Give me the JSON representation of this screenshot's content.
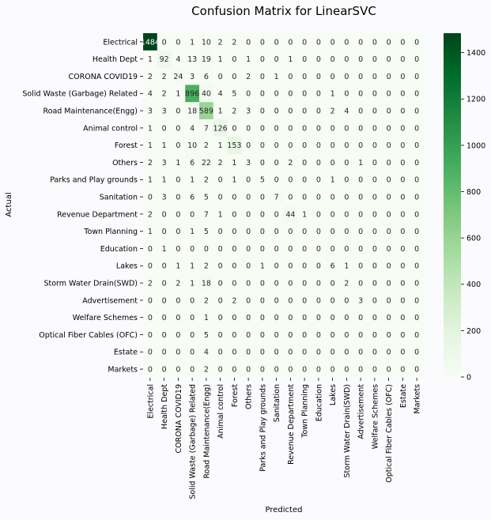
{
  "chart_data": {
    "type": "heatmap",
    "title": "Confusion Matrix for LinearSVC",
    "xlabel": "Predicted",
    "ylabel": "Actual",
    "categories": [
      "Electrical",
      "Health Dept",
      "CORONA COVID19",
      "Solid Waste (Garbage) Related",
      "Road Maintenance(Engg)",
      "Animal control",
      "Forest",
      "Others",
      "Parks and Play grounds",
      "Sanitation",
      "Revenue Department",
      "Town Planning",
      "Education",
      "Lakes",
      "Storm  Water Drain(SWD)",
      "Advertisement",
      "Welfare Schemes",
      "Optical Fiber Cables (OFC)",
      "Estate",
      "Markets"
    ],
    "cell_labels": [
      [
        "1484",
        "0",
        "0",
        "1",
        "10",
        "2",
        "2",
        "0",
        "0",
        "0",
        "0",
        "0",
        "0",
        "0",
        "0",
        "0",
        "0",
        "0",
        "0",
        "0"
      ],
      [
        "1",
        "92",
        "4",
        "13",
        "19",
        "1",
        "0",
        "1",
        "0",
        "0",
        "1",
        "0",
        "0",
        "0",
        "0",
        "0",
        "0",
        "0",
        "0",
        "0"
      ],
      [
        "2",
        "2",
        "24",
        "3",
        "6",
        "0",
        "0",
        "2",
        "0",
        "1",
        "0",
        "0",
        "0",
        "0",
        "0",
        "0",
        "0",
        "0",
        "0",
        "0"
      ],
      [
        "4",
        "2",
        "1",
        "896",
        "40",
        "4",
        "5",
        "0",
        "0",
        "0",
        "0",
        "0",
        "0",
        "1",
        "0",
        "0",
        "0",
        "0",
        "0",
        "0"
      ],
      [
        "3",
        "3",
        "0",
        "18",
        "589",
        "1",
        "2",
        "3",
        "0",
        "0",
        "0",
        "0",
        "0",
        "2",
        "4",
        "0",
        "0",
        "0",
        "0",
        "0"
      ],
      [
        "1",
        "0",
        "0",
        "4",
        "7",
        "126",
        "0",
        "0",
        "0",
        "0",
        "0",
        "0",
        "0",
        "0",
        "0",
        "0",
        "0",
        "0",
        "0",
        "0"
      ],
      [
        "1",
        "1",
        "0",
        "10",
        "2",
        "1",
        "153",
        "0",
        "0",
        "0",
        "0",
        "0",
        "0",
        "0",
        "0",
        "0",
        "0",
        "0",
        "0",
        "0"
      ],
      [
        "2",
        "3",
        "1",
        "6",
        "22",
        "2",
        "1",
        "3",
        "0",
        "0",
        "2",
        "0",
        "0",
        "0",
        "0",
        "1",
        "0",
        "0",
        "0",
        "0"
      ],
      [
        "1",
        "1",
        "0",
        "1",
        "2",
        "0",
        "1",
        "0",
        "5",
        "0",
        "0",
        "0",
        "0",
        "1",
        "0",
        "0",
        "0",
        "0",
        "0",
        "0"
      ],
      [
        "0",
        "3",
        "0",
        "6",
        "5",
        "0",
        "0",
        "0",
        "0",
        "7",
        "0",
        "0",
        "0",
        "0",
        "0",
        "0",
        "0",
        "0",
        "0",
        "0"
      ],
      [
        "2",
        "0",
        "0",
        "0",
        "7",
        "1",
        "0",
        "0",
        "0",
        "0",
        "44",
        "1",
        "0",
        "0",
        "0",
        "0",
        "0",
        "0",
        "0",
        "0"
      ],
      [
        "1",
        "0",
        "0",
        "1",
        "5",
        "0",
        "0",
        "0",
        "0",
        "0",
        "0",
        "0",
        "0",
        "0",
        "0",
        "0",
        "0",
        "0",
        "0",
        "0"
      ],
      [
        "0",
        "1",
        "0",
        "0",
        "0",
        "0",
        "0",
        "0",
        "0",
        "0",
        "0",
        "0",
        "0",
        "0",
        "0",
        "0",
        "0",
        "0",
        "0",
        "0"
      ],
      [
        "0",
        "0",
        "1",
        "1",
        "2",
        "0",
        "0",
        "0",
        "1",
        "0",
        "0",
        "0",
        "0",
        "6",
        "1",
        "0",
        "0",
        "0",
        "0",
        "0"
      ],
      [
        "2",
        "0",
        "2",
        "1",
        "18",
        "0",
        "0",
        "0",
        "0",
        "0",
        "0",
        "0",
        "0",
        "0",
        "2",
        "0",
        "0",
        "0",
        "0",
        "0"
      ],
      [
        "0",
        "0",
        "0",
        "0",
        "2",
        "0",
        "2",
        "0",
        "0",
        "0",
        "0",
        "0",
        "0",
        "0",
        "0",
        "3",
        "0",
        "0",
        "0",
        "0"
      ],
      [
        "0",
        "0",
        "0",
        "0",
        "1",
        "0",
        "0",
        "0",
        "0",
        "0",
        "0",
        "0",
        "0",
        "0",
        "0",
        "0",
        "0",
        "0",
        "0",
        "0"
      ],
      [
        "0",
        "0",
        "0",
        "0",
        "5",
        "0",
        "0",
        "0",
        "0",
        "0",
        "0",
        "0",
        "0",
        "0",
        "0",
        "0",
        "0",
        "0",
        "0",
        "0"
      ],
      [
        "0",
        "0",
        "0",
        "0",
        "4",
        "0",
        "0",
        "0",
        "0",
        "0",
        "0",
        "0",
        "0",
        "0",
        "0",
        "0",
        "0",
        "0",
        "0",
        "0"
      ],
      [
        "0",
        "0",
        "0",
        "0",
        "2",
        "0",
        "0",
        "0",
        "0",
        "0",
        "0",
        "0",
        "0",
        "0",
        "0",
        "0",
        "0",
        "0",
        "0",
        "0"
      ]
    ],
    "colorbar": {
      "colormap": "Greens",
      "min": 0,
      "max": 1484,
      "ticks": [
        "0",
        "200",
        "400",
        "600",
        "800",
        "1000",
        "1200",
        "1400"
      ]
    },
    "grid": false
  }
}
